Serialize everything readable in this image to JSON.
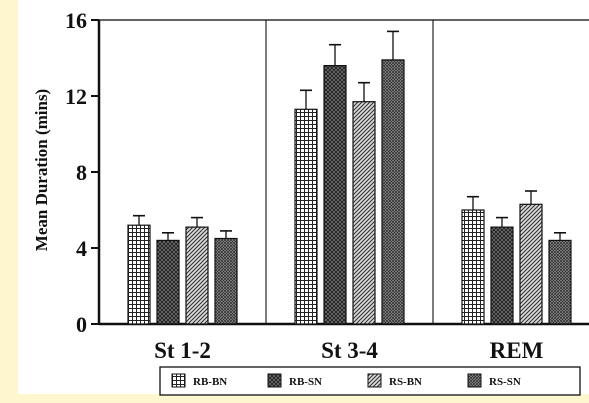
{
  "chart_data": {
    "type": "bar",
    "ylabel": "Mean Duration (mins)",
    "ylim": [
      0,
      16
    ],
    "yticks": [
      0,
      4,
      8,
      12,
      16
    ],
    "categories": [
      "St 1-2",
      "St 3-4",
      "REM"
    ],
    "series": [
      {
        "name": "RB-BN",
        "values": [
          5.2,
          11.3,
          6.0
        ],
        "errors": [
          0.5,
          1.0,
          0.7
        ],
        "pattern": "grid-fine"
      },
      {
        "name": "RB-SN",
        "values": [
          4.4,
          13.6,
          5.1
        ],
        "errors": [
          0.4,
          1.1,
          0.5
        ],
        "pattern": "crosshatch-dark"
      },
      {
        "name": "RS-BN",
        "values": [
          5.1,
          11.7,
          6.3
        ],
        "errors": [
          0.5,
          1.0,
          0.7
        ],
        "pattern": "diagonal"
      },
      {
        "name": "RS-SN",
        "values": [
          4.5,
          13.9,
          4.4
        ],
        "errors": [
          0.4,
          1.5,
          0.4
        ],
        "pattern": "crosshatch"
      }
    ],
    "grid": false,
    "legend_placement": "bottom",
    "colors": {
      "background": "#ffffff",
      "ink": "#111111",
      "page_edge": "#fdf6cf"
    }
  }
}
